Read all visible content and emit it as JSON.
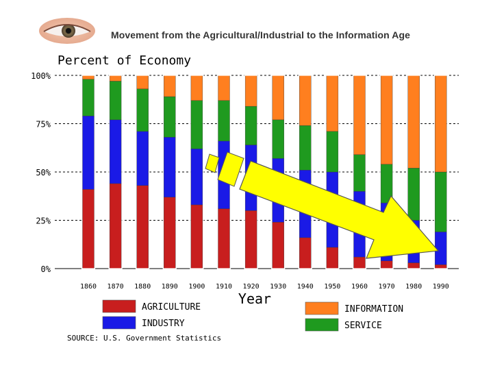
{
  "header": {
    "title": "Movement from the Agricultural/Industrial to the Information Age",
    "logo_icon": "eye-icon"
  },
  "chart_data": {
    "type": "bar",
    "stacked": true,
    "title": "Percent of Economy",
    "xlabel": "Year",
    "ylabel": "",
    "ylim": [
      0,
      100
    ],
    "ytick_labels": [
      "0%",
      "25%",
      "50%",
      "75%",
      "100%"
    ],
    "categories": [
      "1860",
      "1870",
      "1880",
      "1890",
      "1900",
      "1910",
      "1920",
      "1930",
      "1940",
      "1950",
      "1960",
      "1970",
      "1980",
      "1990"
    ],
    "series": [
      {
        "name": "AGRICULTURE",
        "color": "#c81e1e",
        "values": [
          41,
          44,
          43,
          37,
          33,
          31,
          30,
          24,
          16,
          11,
          6,
          4,
          3,
          2
        ]
      },
      {
        "name": "INDUSTRY",
        "color": "#1a1ae6",
        "values": [
          38,
          33,
          28,
          31,
          29,
          35,
          34,
          33,
          35,
          39,
          34,
          30,
          22,
          17
        ]
      },
      {
        "name": "SERVICE",
        "color": "#1f9a1f",
        "values": [
          19,
          20,
          22,
          21,
          25,
          21,
          20,
          20,
          23,
          21,
          19,
          20,
          27,
          31
        ]
      },
      {
        "name": "INFORMATION",
        "color": "#ff7f1f",
        "values": [
          2,
          3,
          7,
          11,
          13,
          13,
          16,
          23,
          26,
          29,
          41,
          46,
          48,
          50
        ]
      }
    ],
    "grid": "dashed horizontal",
    "legend": "bottom",
    "source": "SOURCE: U.S. Government Statistics",
    "annotation": "yellow-trend-arrow"
  }
}
